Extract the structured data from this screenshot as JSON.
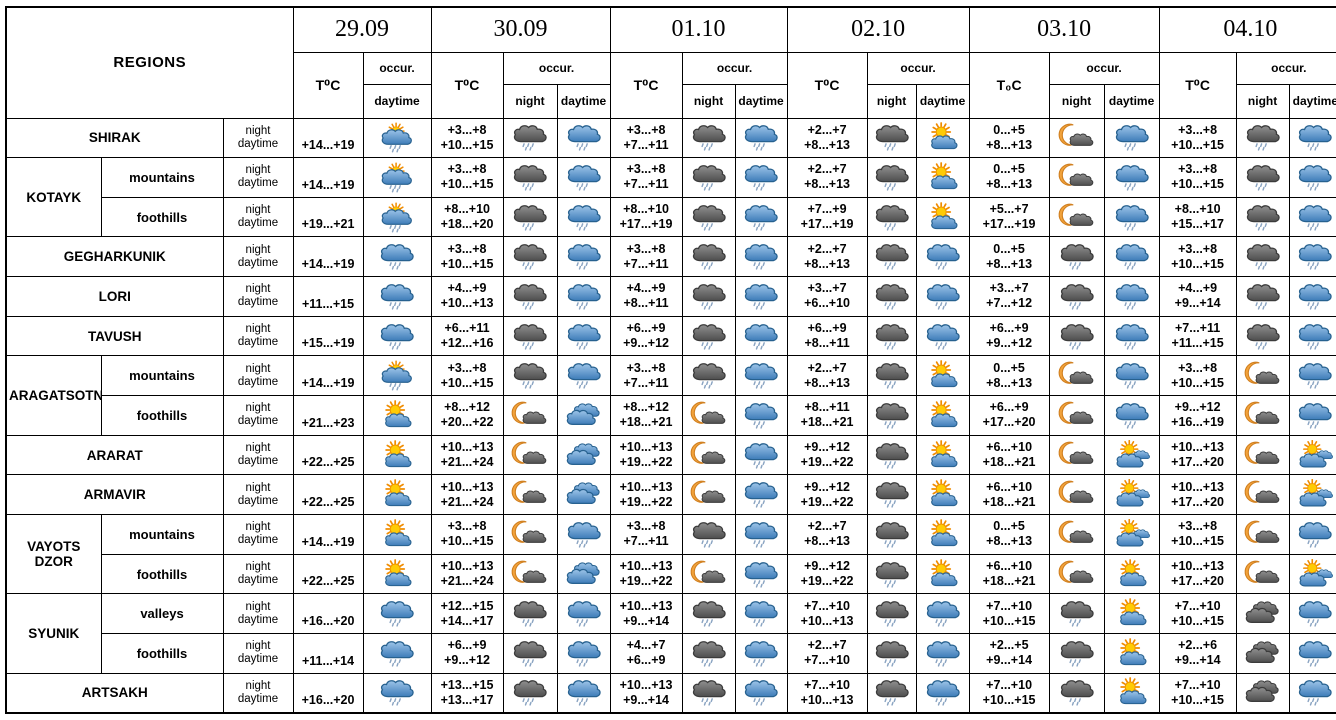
{
  "labels": {
    "night": "night",
    "daytime": "daytime"
  },
  "header": {
    "regions_label": "REGIONS",
    "occur_label": "occur.",
    "night_label": "night",
    "daytime_label": "daytime",
    "dates": [
      {
        "label": "29.09",
        "t_label": "T⁰C"
      },
      {
        "label": "30.09",
        "t_label": "T⁰C"
      },
      {
        "label": "01.10",
        "t_label": "T⁰C"
      },
      {
        "label": "02.10",
        "t_label": "T⁰C"
      },
      {
        "label": "03.10",
        "t_label": "T₀C"
      },
      {
        "label": "04.10",
        "t_label": "T⁰C"
      }
    ]
  },
  "colors": {
    "border": "#000000",
    "text": "#000000",
    "cloud_blue_top": "#9cc4e8",
    "cloud_blue_bottom": "#3e7cb8",
    "cloud_blue_stroke": "#27618f",
    "cloud_dark_top": "#8f8f8f",
    "cloud_dark_bottom": "#4e4e4e",
    "cloud_dark_stroke": "#3b3b3b",
    "sun_core": "#ffcb05",
    "sun_rays": "#f08c00",
    "moon": "#f2a33c",
    "moon_stroke": "#d07f1f",
    "rain_drop": "#8aa4c2"
  },
  "icon_glossary": {
    "sun-rain": "sun behind rain cloud with showers",
    "sun-cloud": "sun behind cloud",
    "sun-clouds": "sun behind two clouds",
    "rain-blue": "blue cloud with rain",
    "rain-dark": "dark cloud with rain",
    "moon-cloud": "crescent moon behind cloud",
    "clouds-blue": "overcast blue clouds",
    "clouds-dark": "overcast dark clouds"
  },
  "rows": [
    {
      "region": "SHIRAK",
      "cells": {
        "d29": {
          "t": "+14...+19",
          "day": "sun-rain"
        },
        "d30": {
          "tn": "+3...+8",
          "td": "+10...+15",
          "night": "rain-dark",
          "day": "rain-blue"
        },
        "d01": {
          "tn": "+3...+8",
          "td": "+7...+11",
          "night": "rain-dark",
          "day": "rain-blue"
        },
        "d02": {
          "tn": "+2...+7",
          "td": "+8...+13",
          "night": "rain-dark",
          "day": "sun-cloud"
        },
        "d03": {
          "tn": "0...+5",
          "td": "+8...+13",
          "night": "moon-cloud",
          "day": "rain-blue"
        },
        "d04": {
          "tn": "+3...+8",
          "td": "+10...+15",
          "night": "rain-dark",
          "day": "rain-blue"
        }
      }
    },
    {
      "group": "KOTAYK",
      "group_span": 2,
      "sub": "mountains",
      "cells": {
        "d29": {
          "t": "+14...+19",
          "day": "sun-rain"
        },
        "d30": {
          "tn": "+3...+8",
          "td": "+10...+15",
          "night": "rain-dark",
          "day": "rain-blue"
        },
        "d01": {
          "tn": "+3...+8",
          "td": "+7...+11",
          "night": "rain-dark",
          "day": "rain-blue"
        },
        "d02": {
          "tn": "+2...+7",
          "td": "+8...+13",
          "night": "rain-dark",
          "day": "sun-cloud"
        },
        "d03": {
          "tn": "0...+5",
          "td": "+8...+13",
          "night": "moon-cloud",
          "day": "rain-blue"
        },
        "d04": {
          "tn": "+3...+8",
          "td": "+10...+15",
          "night": "rain-dark",
          "day": "rain-blue"
        }
      }
    },
    {
      "sub": "foothills",
      "cells": {
        "d29": {
          "t": "+19...+21",
          "day": "sun-rain"
        },
        "d30": {
          "tn": "+8...+10",
          "td": "+18...+20",
          "night": "rain-dark",
          "day": "rain-blue"
        },
        "d01": {
          "tn": "+8...+10",
          "td": "+17...+19",
          "night": "rain-dark",
          "day": "rain-blue"
        },
        "d02": {
          "tn": "+7...+9",
          "td": "+17...+19",
          "night": "rain-dark",
          "day": "sun-cloud"
        },
        "d03": {
          "tn": "+5...+7",
          "td": "+17...+19",
          "night": "moon-cloud",
          "day": "rain-blue"
        },
        "d04": {
          "tn": "+8...+10",
          "td": "+15...+17",
          "night": "rain-dark",
          "day": "rain-blue"
        }
      }
    },
    {
      "region": "GEGHARKUNIK",
      "cells": {
        "d29": {
          "t": "+14...+19",
          "day": "rain-blue"
        },
        "d30": {
          "tn": "+3...+8",
          "td": "+10...+15",
          "night": "rain-dark",
          "day": "rain-blue"
        },
        "d01": {
          "tn": "+3...+8",
          "td": "+7...+11",
          "night": "rain-dark",
          "day": "rain-blue"
        },
        "d02": {
          "tn": "+2...+7",
          "td": "+8...+13",
          "night": "rain-dark",
          "day": "rain-blue"
        },
        "d03": {
          "tn": "0...+5",
          "td": "+8...+13",
          "night": "rain-dark",
          "day": "rain-blue"
        },
        "d04": {
          "tn": "+3...+8",
          "td": "+10...+15",
          "night": "rain-dark",
          "day": "rain-blue"
        }
      }
    },
    {
      "region": "LORI",
      "cells": {
        "d29": {
          "t": "+11...+15",
          "day": "rain-blue"
        },
        "d30": {
          "tn": "+4...+9",
          "td": "+10...+13",
          "night": "rain-dark",
          "day": "rain-blue"
        },
        "d01": {
          "tn": "+4...+9",
          "td": "+8...+11",
          "night": "rain-dark",
          "day": "rain-blue"
        },
        "d02": {
          "tn": "+3...+7",
          "td": "+6...+10",
          "night": "rain-dark",
          "day": "rain-blue"
        },
        "d03": {
          "tn": "+3...+7",
          "td": "+7...+12",
          "night": "rain-dark",
          "day": "rain-blue"
        },
        "d04": {
          "tn": "+4...+9",
          "td": "+9...+14",
          "night": "rain-dark",
          "day": "rain-blue"
        }
      }
    },
    {
      "region": "TAVUSH",
      "cells": {
        "d29": {
          "t": "+15...+19",
          "day": "rain-blue"
        },
        "d30": {
          "tn": "+6...+11",
          "td": "+12...+16",
          "night": "rain-dark",
          "day": "rain-blue"
        },
        "d01": {
          "tn": "+6...+9",
          "td": "+9...+12",
          "night": "rain-dark",
          "day": "rain-blue"
        },
        "d02": {
          "tn": "+6...+9",
          "td": "+8...+11",
          "night": "rain-dark",
          "day": "rain-blue"
        },
        "d03": {
          "tn": "+6...+9",
          "td": "+9...+12",
          "night": "rain-dark",
          "day": "rain-blue"
        },
        "d04": {
          "tn": "+7...+11",
          "td": "+11...+15",
          "night": "rain-dark",
          "day": "rain-blue"
        }
      }
    },
    {
      "group": "ARAGATSOTN",
      "group_span": 2,
      "sub": "mountains",
      "cells": {
        "d29": {
          "t": "+14...+19",
          "day": "sun-rain"
        },
        "d30": {
          "tn": "+3...+8",
          "td": "+10...+15",
          "night": "rain-dark",
          "day": "rain-blue"
        },
        "d01": {
          "tn": "+3...+8",
          "td": "+7...+11",
          "night": "rain-dark",
          "day": "rain-blue"
        },
        "d02": {
          "tn": "+2...+7",
          "td": "+8...+13",
          "night": "rain-dark",
          "day": "sun-cloud"
        },
        "d03": {
          "tn": "0...+5",
          "td": "+8...+13",
          "night": "moon-cloud",
          "day": "rain-blue"
        },
        "d04": {
          "tn": "+3...+8",
          "td": "+10...+15",
          "night": "moon-cloud",
          "day": "rain-blue"
        }
      }
    },
    {
      "sub": "foothills",
      "cells": {
        "d29": {
          "t": "+21...+23",
          "day": "sun-cloud"
        },
        "d30": {
          "tn": "+8...+12",
          "td": "+20...+22",
          "night": "moon-cloud",
          "day": "clouds-blue"
        },
        "d01": {
          "tn": "+8...+12",
          "td": "+18...+21",
          "night": "moon-cloud",
          "day": "rain-blue"
        },
        "d02": {
          "tn": "+8...+11",
          "td": "+18...+21",
          "night": "rain-dark",
          "day": "sun-cloud"
        },
        "d03": {
          "tn": "+6...+9",
          "td": "+17...+20",
          "night": "moon-cloud",
          "day": "rain-blue"
        },
        "d04": {
          "tn": "+9...+12",
          "td": "+16...+19",
          "night": "moon-cloud",
          "day": "rain-blue"
        }
      }
    },
    {
      "region": "ARARAT",
      "cells": {
        "d29": {
          "t": "+22...+25",
          "day": "sun-cloud"
        },
        "d30": {
          "tn": "+10...+13",
          "td": "+21...+24",
          "night": "moon-cloud",
          "day": "clouds-blue"
        },
        "d01": {
          "tn": "+10...+13",
          "td": "+19...+22",
          "night": "moon-cloud",
          "day": "rain-blue"
        },
        "d02": {
          "tn": "+9...+12",
          "td": "+19...+22",
          "night": "rain-dark",
          "day": "sun-cloud"
        },
        "d03": {
          "tn": "+6...+10",
          "td": "+18...+21",
          "night": "moon-cloud",
          "day": "sun-clouds"
        },
        "d04": {
          "tn": "+10...+13",
          "td": "+17...+20",
          "night": "moon-cloud",
          "day": "sun-clouds"
        }
      }
    },
    {
      "region": "ARMAVIR",
      "cells": {
        "d29": {
          "t": "+22...+25",
          "day": "sun-cloud"
        },
        "d30": {
          "tn": "+10...+13",
          "td": "+21...+24",
          "night": "moon-cloud",
          "day": "clouds-blue"
        },
        "d01": {
          "tn": "+10...+13",
          "td": "+19...+22",
          "night": "moon-cloud",
          "day": "rain-blue"
        },
        "d02": {
          "tn": "+9...+12",
          "td": "+19...+22",
          "night": "rain-dark",
          "day": "sun-cloud"
        },
        "d03": {
          "tn": "+6...+10",
          "td": "+18...+21",
          "night": "moon-cloud",
          "day": "sun-clouds"
        },
        "d04": {
          "tn": "+10...+13",
          "td": "+17...+20",
          "night": "moon-cloud",
          "day": "sun-clouds"
        }
      }
    },
    {
      "group": "VAYOTS DZOR",
      "group_span": 2,
      "sub": "mountains",
      "cells": {
        "d29": {
          "t": "+14...+19",
          "day": "sun-cloud"
        },
        "d30": {
          "tn": "+3...+8",
          "td": "+10...+15",
          "night": "moon-cloud",
          "day": "rain-blue"
        },
        "d01": {
          "tn": "+3...+8",
          "td": "+7...+11",
          "night": "rain-dark",
          "day": "rain-blue"
        },
        "d02": {
          "tn": "+2...+7",
          "td": "+8...+13",
          "night": "rain-dark",
          "day": "sun-cloud"
        },
        "d03": {
          "tn": "0...+5",
          "td": "+8...+13",
          "night": "moon-cloud",
          "day": "sun-clouds"
        },
        "d04": {
          "tn": "+3...+8",
          "td": "+10...+15",
          "night": "moon-cloud",
          "day": "rain-blue"
        }
      }
    },
    {
      "sub": "foothills",
      "cells": {
        "d29": {
          "t": "+22...+25",
          "day": "sun-cloud"
        },
        "d30": {
          "tn": "+10...+13",
          "td": "+21...+24",
          "night": "moon-cloud",
          "day": "clouds-blue"
        },
        "d01": {
          "tn": "+10...+13",
          "td": "+19...+22",
          "night": "moon-cloud",
          "day": "rain-blue"
        },
        "d02": {
          "tn": "+9...+12",
          "td": "+19...+22",
          "night": "rain-dark",
          "day": "sun-cloud"
        },
        "d03": {
          "tn": "+6...+10",
          "td": "+18...+21",
          "night": "moon-cloud",
          "day": "sun-cloud"
        },
        "d04": {
          "tn": "+10...+13",
          "td": "+17...+20",
          "night": "moon-cloud",
          "day": "sun-clouds"
        }
      }
    },
    {
      "group": "SYUNIK",
      "group_span": 2,
      "sub": "valleys",
      "cells": {
        "d29": {
          "t": "+16...+20",
          "day": "rain-blue"
        },
        "d30": {
          "tn": "+12...+15",
          "td": "+14...+17",
          "night": "rain-dark",
          "day": "rain-blue"
        },
        "d01": {
          "tn": "+10...+13",
          "td": "+9...+14",
          "night": "rain-dark",
          "day": "rain-blue"
        },
        "d02": {
          "tn": "+7...+10",
          "td": "+10...+13",
          "night": "rain-dark",
          "day": "rain-blue"
        },
        "d03": {
          "tn": "+7...+10",
          "td": "+10...+15",
          "night": "rain-dark",
          "day": "sun-cloud"
        },
        "d04": {
          "tn": "+7...+10",
          "td": "+10...+15",
          "night": "clouds-dark",
          "day": "rain-blue"
        }
      }
    },
    {
      "sub": "foothills",
      "cells": {
        "d29": {
          "t": "+11...+14",
          "day": "rain-blue"
        },
        "d30": {
          "tn": "+6...+9",
          "td": "+9...+12",
          "night": "rain-dark",
          "day": "rain-blue"
        },
        "d01": {
          "tn": "+4...+7",
          "td": "+6...+9",
          "night": "rain-dark",
          "day": "rain-blue"
        },
        "d02": {
          "tn": "+2...+7",
          "td": "+7...+10",
          "night": "rain-dark",
          "day": "rain-blue"
        },
        "d03": {
          "tn": "+2...+5",
          "td": "+9...+14",
          "night": "rain-dark",
          "day": "sun-cloud"
        },
        "d04": {
          "tn": "+2...+6",
          "td": "+9...+14",
          "night": "clouds-dark",
          "day": "rain-blue"
        }
      }
    },
    {
      "region": "ARTSAKH",
      "cells": {
        "d29": {
          "t": "+16...+20",
          "day": "rain-blue"
        },
        "d30": {
          "tn": "+13...+15",
          "td": "+13...+17",
          "night": "rain-dark",
          "day": "rain-blue"
        },
        "d01": {
          "tn": "+10...+13",
          "td": "+9...+14",
          "night": "rain-dark",
          "day": "rain-blue"
        },
        "d02": {
          "tn": "+7...+10",
          "td": "+10...+13",
          "night": "rain-dark",
          "day": "rain-blue"
        },
        "d03": {
          "tn": "+7...+10",
          "td": "+10...+15",
          "night": "rain-dark",
          "day": "sun-cloud"
        },
        "d04": {
          "tn": "+7...+10",
          "td": "+10...+15",
          "night": "clouds-dark",
          "day": "rain-blue"
        }
      }
    }
  ]
}
